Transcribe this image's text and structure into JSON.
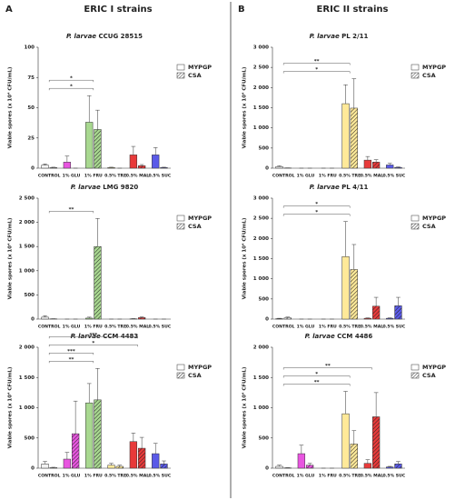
{
  "panels": [
    {
      "letter": "A",
      "heading": "ERIC I strains"
    },
    {
      "letter": "B",
      "heading": "ERIC II strains"
    }
  ],
  "chart_data": [
    {
      "type": "bar",
      "title": {
        "species": "P. larvae",
        "strain": "CCUG 28515"
      },
      "ylabel": "Viable spores (x 10⁴ CFU/mL)",
      "categories": [
        "CONTROL",
        "1% GLU",
        "1% FRU",
        "0.5% TRE",
        "0.5% MAL",
        "0.5% SUC"
      ],
      "colors": [
        "#f2f2f2",
        "#e855e0",
        "#a8d890",
        "#ffe999",
        "#e83a3a",
        "#5a5ae8"
      ],
      "series": [
        {
          "name": "MYPGP",
          "pattern": "solid",
          "values": [
            2.5,
            5,
            38,
            0.5,
            11,
            11
          ],
          "errors": [
            1,
            5,
            22,
            0.3,
            7,
            6
          ]
        },
        {
          "name": "CSA",
          "pattern": "hatch",
          "values": [
            0.5,
            0,
            32,
            0,
            2,
            0.5
          ],
          "errors": [
            0.3,
            0,
            16,
            0,
            1,
            0.3
          ]
        }
      ],
      "ylim": [
        0,
        100
      ],
      "yticks": [
        0,
        25,
        50,
        75,
        100
      ],
      "brackets": [
        {
          "from": 0,
          "to": 2,
          "label": "*"
        },
        {
          "from": 0,
          "to": 2,
          "label": "*"
        }
      ]
    },
    {
      "type": "bar",
      "title": {
        "species": "P. larvae",
        "strain": "LMG 9820"
      },
      "ylabel": "Viable spores (x 10⁴ CFU/mL)",
      "categories": [
        "CONTROL",
        "1% GLU",
        "1% FRU",
        "0.5% TRE",
        "0.5% MAL",
        "0.5% SUC"
      ],
      "colors": [
        "#f2f2f2",
        "#e855e0",
        "#a8d890",
        "#ffe999",
        "#e83a3a",
        "#5a5ae8"
      ],
      "series": [
        {
          "name": "MYPGP",
          "pattern": "solid",
          "values": [
            40,
            0,
            20,
            0,
            5,
            0
          ],
          "errors": [
            30,
            0,
            20,
            0,
            5,
            0
          ]
        },
        {
          "name": "CSA",
          "pattern": "hatch",
          "values": [
            5,
            0,
            1500,
            0,
            30,
            0
          ],
          "errors": [
            3,
            0,
            580,
            0,
            15,
            0
          ]
        }
      ],
      "ylim": [
        0,
        2500
      ],
      "yticks": [
        0,
        500,
        {
          "value": 1000,
          "label": "1 000"
        },
        {
          "value": 1500,
          "label": "1 500"
        },
        {
          "value": 2000,
          "label": "2 000"
        },
        {
          "value": 2500,
          "label": "2 500"
        }
      ],
      "brackets": [
        {
          "from": 0,
          "to": 2,
          "label": "**"
        }
      ]
    },
    {
      "type": "bar",
      "title": {
        "species": "P. larvae",
        "strain": "CCM 4483"
      },
      "ylabel": "Viable spores (x 10⁴ CFU/mL)",
      "categories": [
        "CONTROL",
        "1% GLU",
        "1% FRU",
        "0.5% TRE",
        "0.5% MAL",
        "0.5% SUC"
      ],
      "colors": [
        "#f2f2f2",
        "#e855e0",
        "#a8d890",
        "#ffe999",
        "#e83a3a",
        "#5a5ae8"
      ],
      "series": [
        {
          "name": "MYPGP",
          "pattern": "solid",
          "values": [
            70,
            150,
            1080,
            50,
            440,
            240
          ],
          "errors": [
            40,
            110,
            320,
            30,
            140,
            170
          ]
        },
        {
          "name": "CSA",
          "pattern": "hatch",
          "values": [
            10,
            570,
            1130,
            30,
            330,
            70
          ],
          "errors": [
            5,
            540,
            520,
            20,
            180,
            50
          ]
        }
      ],
      "ylim": [
        0,
        2000
      ],
      "yticks": [
        0,
        500,
        {
          "value": 1000,
          "label": "1 000"
        },
        {
          "value": 1500,
          "label": "1 500"
        },
        {
          "value": 2000,
          "label": "2 000"
        }
      ],
      "brackets": [
        {
          "from": 0,
          "to": 2,
          "label": "**"
        },
        {
          "from": 0,
          "to": 2,
          "label": "***"
        },
        {
          "from": 0,
          "to": 4,
          "label": "*"
        },
        {
          "from": 0,
          "to": 4,
          "label": "***"
        }
      ]
    },
    {
      "type": "bar",
      "title": {
        "species": "P. larvae",
        "strain": "PL 2/11"
      },
      "ylabel": "Viable spores (x 10⁴ CFU/mL)",
      "categories": [
        "CONTROL",
        "1% GLU",
        "1% FRU",
        "0.5% TRE",
        "0.5% MAL",
        "0.5% SUC"
      ],
      "colors": [
        "#f2f2f2",
        "#e855e0",
        "#a8d890",
        "#ffe999",
        "#e83a3a",
        "#5a5ae8"
      ],
      "series": [
        {
          "name": "MYPGP",
          "pattern": "solid",
          "values": [
            40,
            0,
            0,
            1600,
            200,
            80
          ],
          "errors": [
            20,
            0,
            0,
            470,
            90,
            40
          ]
        },
        {
          "name": "CSA",
          "pattern": "hatch",
          "values": [
            5,
            0,
            0,
            1490,
            150,
            20
          ],
          "errors": [
            3,
            0,
            0,
            730,
            60,
            10
          ]
        }
      ],
      "ylim": [
        0,
        3000
      ],
      "yticks": [
        0,
        500,
        {
          "value": 1000,
          "label": "1 000"
        },
        {
          "value": 1500,
          "label": "1 500"
        },
        {
          "value": 2000,
          "label": "2 000"
        },
        {
          "value": 2500,
          "label": "2 500"
        },
        {
          "value": 3000,
          "label": "3 000"
        }
      ],
      "brackets": [
        {
          "from": 0,
          "to": 3,
          "label": "*"
        },
        {
          "from": 0,
          "to": 3,
          "label": "**"
        }
      ]
    },
    {
      "type": "bar",
      "title": {
        "species": "P. larvae",
        "strain": "PL 4/11"
      },
      "ylabel": "Viable spores (x 10⁴ CFU/mL)",
      "categories": [
        "CONTROL",
        "1% GLU",
        "1% FRU",
        "0.5% TRE",
        "0.5% MAL",
        "0.5% SUC"
      ],
      "colors": [
        "#f2f2f2",
        "#e855e0",
        "#a8d890",
        "#ffe999",
        "#e83a3a",
        "#5a5ae8"
      ],
      "series": [
        {
          "name": "MYPGP",
          "pattern": "solid",
          "values": [
            10,
            0,
            0,
            1550,
            20,
            20
          ],
          "errors": [
            10,
            0,
            0,
            870,
            10,
            10
          ]
        },
        {
          "name": "CSA",
          "pattern": "hatch",
          "values": [
            30,
            0,
            0,
            1230,
            320,
            330
          ],
          "errors": [
            20,
            0,
            0,
            620,
            220,
            210
          ]
        }
      ],
      "ylim": [
        0,
        3000
      ],
      "yticks": [
        0,
        500,
        {
          "value": 1000,
          "label": "1 000"
        },
        {
          "value": 1500,
          "label": "1 500"
        },
        {
          "value": 2000,
          "label": "2 000"
        },
        {
          "value": 2500,
          "label": "2 500"
        },
        {
          "value": 3000,
          "label": "3 000"
        }
      ],
      "brackets": [
        {
          "from": 0,
          "to": 3,
          "label": "*"
        },
        {
          "from": 0,
          "to": 3,
          "label": "*"
        }
      ]
    },
    {
      "type": "bar",
      "title": {
        "species": "P. larvae",
        "strain": "CCM 4486"
      },
      "ylabel": "Viable spores (x 10⁴ CFU/mL)",
      "categories": [
        "CONTROL",
        "1% GLU",
        "1% FRU",
        "0.5% TRE",
        "0.5% MAL",
        "0.5% SUC"
      ],
      "colors": [
        "#f2f2f2",
        "#e855e0",
        "#a8d890",
        "#ffe999",
        "#e83a3a",
        "#5a5ae8"
      ],
      "series": [
        {
          "name": "MYPGP",
          "pattern": "solid",
          "values": [
            30,
            240,
            0,
            900,
            80,
            20
          ],
          "errors": [
            20,
            140,
            0,
            370,
            60,
            10
          ]
        },
        {
          "name": "CSA",
          "pattern": "hatch",
          "values": [
            5,
            50,
            0,
            400,
            850,
            70
          ],
          "errors": [
            3,
            30,
            0,
            220,
            400,
            40
          ]
        }
      ],
      "ylim": [
        0,
        2000
      ],
      "yticks": [
        0,
        500,
        {
          "value": 1000,
          "label": "1 000"
        },
        {
          "value": 1500,
          "label": "1 500"
        },
        {
          "value": 2000,
          "label": "2 000"
        }
      ],
      "brackets": [
        {
          "from": 0,
          "to": 3,
          "label": "**"
        },
        {
          "from": 0,
          "to": 3,
          "label": "*"
        },
        {
          "from": 0,
          "to": 4,
          "label": "**"
        }
      ]
    }
  ]
}
